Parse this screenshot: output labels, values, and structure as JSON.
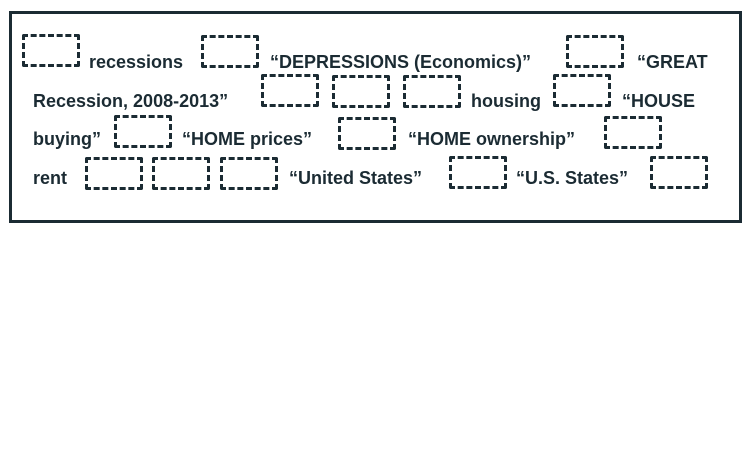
{
  "search_terms": {
    "t1": "recessions",
    "t2": "“DEPRESSIONS (Economics)”",
    "t3a": "“GREAT",
    "t3b": "Recession, 2008-2013”",
    "t4": "housing",
    "t5a": "“HOUSE",
    "t5b": "buying”",
    "t6": "“HOME prices”",
    "t7": "“HOME ownership”",
    "t8": "rent",
    "t9": "“United States”",
    "t10": "“U.S. States”"
  },
  "colors": {
    "ink": "#1b2b33",
    "background": "#ffffff"
  }
}
